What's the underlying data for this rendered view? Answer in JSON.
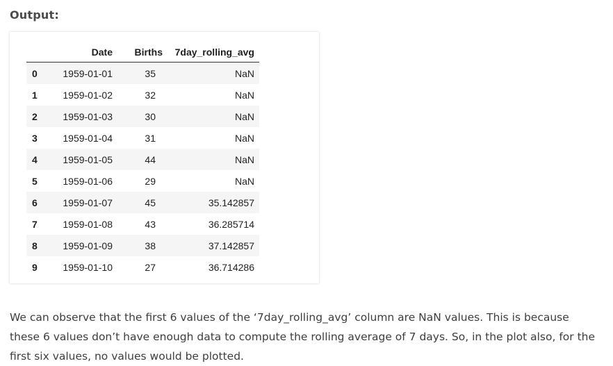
{
  "output_label": "Output:",
  "table": {
    "columns": [
      "",
      "Date",
      "Births",
      "7day_rolling_avg"
    ],
    "rows": [
      {
        "index": "0",
        "date": "1959-01-01",
        "births": "35",
        "avg": "NaN"
      },
      {
        "index": "1",
        "date": "1959-01-02",
        "births": "32",
        "avg": "NaN"
      },
      {
        "index": "2",
        "date": "1959-01-03",
        "births": "30",
        "avg": "NaN"
      },
      {
        "index": "3",
        "date": "1959-01-04",
        "births": "31",
        "avg": "NaN"
      },
      {
        "index": "4",
        "date": "1959-01-05",
        "births": "44",
        "avg": "NaN"
      },
      {
        "index": "5",
        "date": "1959-01-06",
        "births": "29",
        "avg": "NaN"
      },
      {
        "index": "6",
        "date": "1959-01-07",
        "births": "45",
        "avg": "35.142857"
      },
      {
        "index": "7",
        "date": "1959-01-08",
        "births": "43",
        "avg": "36.285714"
      },
      {
        "index": "8",
        "date": "1959-01-09",
        "births": "38",
        "avg": "37.142857"
      },
      {
        "index": "9",
        "date": "1959-01-10",
        "births": "27",
        "avg": "36.714286"
      }
    ]
  },
  "paragraph": {
    "line1": "We can observe that the first 6 values of the ‘7day_rolling_avg’ column are NaN values. This is because",
    "line2": "these 6 values don’t have enough data to compute the rolling average of 7 days. So, in the plot also, for the",
    "line3": "first six values, no values would be plotted."
  }
}
